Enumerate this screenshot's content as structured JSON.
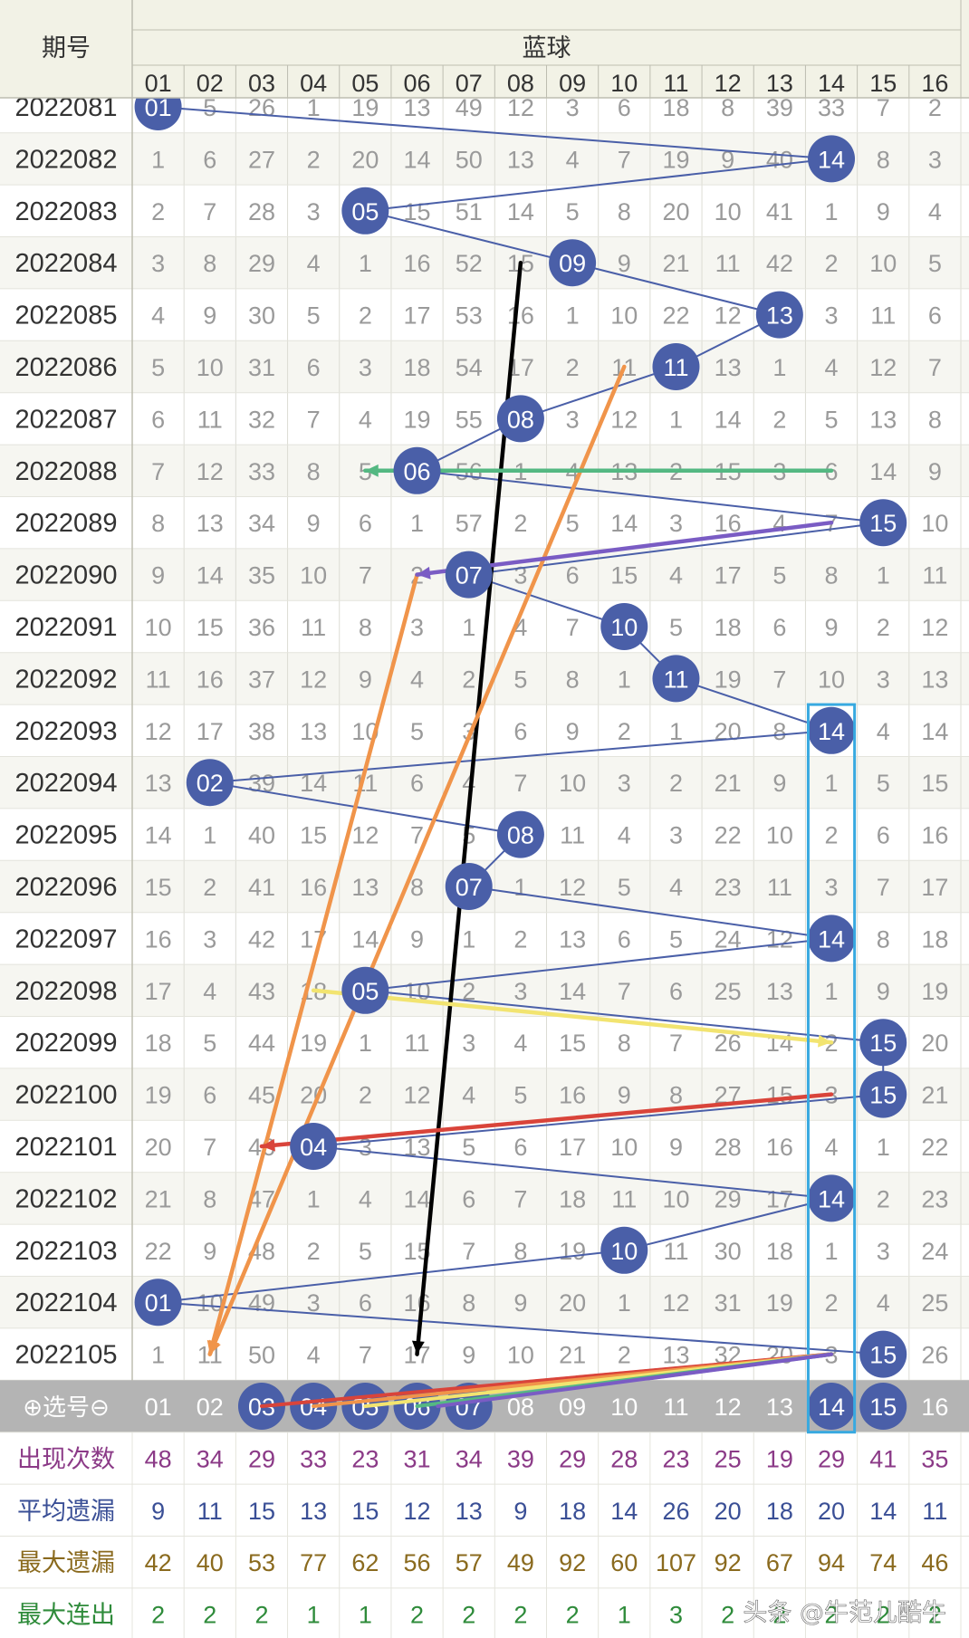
{
  "header": {
    "period_label": "期号",
    "blue_label": "蓝球",
    "columns": [
      "01",
      "02",
      "03",
      "04",
      "05",
      "06",
      "07",
      "08",
      "09",
      "10",
      "11",
      "12",
      "13",
      "14",
      "15",
      "16"
    ]
  },
  "chart_data": {
    "type": "table",
    "rows": [
      {
        "period": "2022081",
        "cells": [
          "01",
          "5",
          "26",
          "1",
          "19",
          "13",
          "49",
          "12",
          "3",
          "6",
          "18",
          "8",
          "39",
          "33",
          "7",
          "2"
        ],
        "hit": 1
      },
      {
        "period": "2022082",
        "cells": [
          "1",
          "6",
          "27",
          "2",
          "20",
          "14",
          "50",
          "13",
          "4",
          "7",
          "19",
          "9",
          "40",
          "14",
          "8",
          "3"
        ],
        "hit": 14
      },
      {
        "period": "2022083",
        "cells": [
          "2",
          "7",
          "28",
          "3",
          "05",
          "15",
          "51",
          "14",
          "5",
          "8",
          "20",
          "10",
          "41",
          "1",
          "9",
          "4"
        ],
        "hit": 5
      },
      {
        "period": "2022084",
        "cells": [
          "3",
          "8",
          "29",
          "4",
          "1",
          "16",
          "52",
          "15",
          "09",
          "9",
          "21",
          "11",
          "42",
          "2",
          "10",
          "5"
        ],
        "hit": 9
      },
      {
        "period": "2022085",
        "cells": [
          "4",
          "9",
          "30",
          "5",
          "2",
          "17",
          "53",
          "16",
          "1",
          "10",
          "22",
          "12",
          "13",
          "3",
          "11",
          "6"
        ],
        "hit": 13
      },
      {
        "period": "2022086",
        "cells": [
          "5",
          "10",
          "31",
          "6",
          "3",
          "18",
          "54",
          "17",
          "2",
          "11",
          "11",
          "13",
          "1",
          "4",
          "12",
          "7"
        ],
        "hit": 11
      },
      {
        "period": "2022087",
        "cells": [
          "6",
          "11",
          "32",
          "7",
          "4",
          "19",
          "55",
          "08",
          "3",
          "12",
          "1",
          "14",
          "2",
          "5",
          "13",
          "8"
        ],
        "hit": 8
      },
      {
        "period": "2022088",
        "cells": [
          "7",
          "12",
          "33",
          "8",
          "5",
          "06",
          "56",
          "1",
          "4",
          "13",
          "2",
          "15",
          "3",
          "6",
          "14",
          "9"
        ],
        "hit": 6
      },
      {
        "period": "2022089",
        "cells": [
          "8",
          "13",
          "34",
          "9",
          "6",
          "1",
          "57",
          "2",
          "5",
          "14",
          "3",
          "16",
          "4",
          "7",
          "15",
          "10"
        ],
        "hit": 15
      },
      {
        "period": "2022090",
        "cells": [
          "9",
          "14",
          "35",
          "10",
          "7",
          "2",
          "07",
          "3",
          "6",
          "15",
          "4",
          "17",
          "5",
          "8",
          "1",
          "11"
        ],
        "hit": 7
      },
      {
        "period": "2022091",
        "cells": [
          "10",
          "15",
          "36",
          "11",
          "8",
          "3",
          "1",
          "4",
          "7",
          "10",
          "5",
          "18",
          "6",
          "9",
          "2",
          "12"
        ],
        "hit": 10
      },
      {
        "period": "2022092",
        "cells": [
          "11",
          "16",
          "37",
          "12",
          "9",
          "4",
          "2",
          "5",
          "8",
          "1",
          "11",
          "19",
          "7",
          "10",
          "3",
          "13"
        ],
        "hit": 11
      },
      {
        "period": "2022093",
        "cells": [
          "12",
          "17",
          "38",
          "13",
          "10",
          "5",
          "3",
          "6",
          "9",
          "2",
          "1",
          "20",
          "8",
          "14",
          "4",
          "14"
        ],
        "hit": 14
      },
      {
        "period": "2022094",
        "cells": [
          "13",
          "02",
          "39",
          "14",
          "11",
          "6",
          "4",
          "7",
          "10",
          "3",
          "2",
          "21",
          "9",
          "1",
          "5",
          "15"
        ],
        "hit": 2
      },
      {
        "period": "2022095",
        "cells": [
          "14",
          "1",
          "40",
          "15",
          "12",
          "7",
          "5",
          "08",
          "11",
          "4",
          "3",
          "22",
          "10",
          "2",
          "6",
          "16"
        ],
        "hit": 8
      },
      {
        "period": "2022096",
        "cells": [
          "15",
          "2",
          "41",
          "16",
          "13",
          "8",
          "07",
          "1",
          "12",
          "5",
          "4",
          "23",
          "11",
          "3",
          "7",
          "17"
        ],
        "hit": 7
      },
      {
        "period": "2022097",
        "cells": [
          "16",
          "3",
          "42",
          "17",
          "14",
          "9",
          "1",
          "2",
          "13",
          "6",
          "5",
          "24",
          "12",
          "14",
          "8",
          "18"
        ],
        "hit": 14
      },
      {
        "period": "2022098",
        "cells": [
          "17",
          "4",
          "43",
          "18",
          "05",
          "10",
          "2",
          "3",
          "14",
          "7",
          "6",
          "25",
          "13",
          "1",
          "9",
          "19"
        ],
        "hit": 5
      },
      {
        "period": "2022099",
        "cells": [
          "18",
          "5",
          "44",
          "19",
          "1",
          "11",
          "3",
          "4",
          "15",
          "8",
          "7",
          "26",
          "14",
          "2",
          "15",
          "20"
        ],
        "hit": 15
      },
      {
        "period": "2022100",
        "cells": [
          "19",
          "6",
          "45",
          "20",
          "2",
          "12",
          "4",
          "5",
          "16",
          "9",
          "8",
          "27",
          "15",
          "3",
          "15",
          "21"
        ],
        "hit": 15
      },
      {
        "period": "2022101",
        "cells": [
          "20",
          "7",
          "46",
          "04",
          "3",
          "13",
          "5",
          "6",
          "17",
          "10",
          "9",
          "28",
          "16",
          "4",
          "1",
          "22"
        ],
        "hit": 4
      },
      {
        "period": "2022102",
        "cells": [
          "21",
          "8",
          "47",
          "1",
          "4",
          "14",
          "6",
          "7",
          "18",
          "11",
          "10",
          "29",
          "17",
          "14",
          "2",
          "23"
        ],
        "hit": 14
      },
      {
        "period": "2022103",
        "cells": [
          "22",
          "9",
          "48",
          "2",
          "5",
          "15",
          "7",
          "8",
          "19",
          "10",
          "11",
          "30",
          "18",
          "1",
          "3",
          "24"
        ],
        "hit": 10
      },
      {
        "period": "2022104",
        "cells": [
          "01",
          "10",
          "49",
          "3",
          "6",
          "16",
          "8",
          "9",
          "20",
          "1",
          "12",
          "31",
          "19",
          "2",
          "4",
          "25"
        ],
        "hit": 1
      },
      {
        "period": "2022105",
        "cells": [
          "1",
          "11",
          "50",
          "4",
          "7",
          "17",
          "9",
          "10",
          "21",
          "2",
          "13",
          "32",
          "20",
          "3",
          "15",
          "26"
        ],
        "hit": 15
      }
    ],
    "selected": [
      3,
      4,
      5,
      6,
      7,
      14,
      15
    ],
    "highlight_column": 14,
    "lines": [
      {
        "from": [
          3,
          8
        ],
        "to": [
          24,
          6
        ],
        "color": "#000000"
      },
      {
        "from": [
          5,
          10
        ],
        "to": [
          24,
          2
        ],
        "color": "#f0944a"
      },
      {
        "from": [
          9,
          6
        ],
        "to": [
          24,
          2
        ],
        "color": "#f0944a"
      },
      {
        "from": [
          7,
          14
        ],
        "to": [
          7,
          5
        ],
        "color": "#54b882"
      },
      {
        "from": [
          8,
          14
        ],
        "to": [
          9,
          6
        ],
        "color": "#7a5cc4"
      },
      {
        "from": [
          17,
          4
        ],
        "to": [
          18,
          14
        ],
        "color": "#f2e470"
      },
      {
        "from": [
          19,
          14
        ],
        "to": [
          20,
          3
        ],
        "color": "#d9443a"
      },
      {
        "from": [
          24,
          14
        ],
        "to": [
          25,
          3
        ],
        "color": "#d9443a"
      },
      {
        "from": [
          24,
          14
        ],
        "to": [
          25,
          4
        ],
        "color": "#f0944a"
      },
      {
        "from": [
          24,
          14
        ],
        "to": [
          25,
          5
        ],
        "color": "#f2e470"
      },
      {
        "from": [
          24,
          14
        ],
        "to": [
          25,
          6
        ],
        "color": "#54b882"
      },
      {
        "from": [
          24,
          14
        ],
        "to": [
          25,
          6.4
        ],
        "color": "#7a5cc4"
      }
    ]
  },
  "select_row": {
    "label": "⊕选号⊖",
    "values": [
      "01",
      "02",
      "03",
      "04",
      "05",
      "06",
      "07",
      "08",
      "09",
      "10",
      "11",
      "12",
      "13",
      "14",
      "15",
      "16"
    ]
  },
  "stats": [
    {
      "label": "出现次数",
      "values": [
        "48",
        "34",
        "29",
        "33",
        "23",
        "31",
        "34",
        "39",
        "29",
        "28",
        "23",
        "25",
        "19",
        "29",
        "41",
        "35"
      ],
      "color": "#8b3a87"
    },
    {
      "label": "平均遗漏",
      "values": [
        "9",
        "11",
        "15",
        "13",
        "15",
        "12",
        "13",
        "9",
        "18",
        "14",
        "26",
        "20",
        "18",
        "20",
        "14",
        "11"
      ],
      "color": "#3a4f96"
    },
    {
      "label": "最大遗漏",
      "values": [
        "42",
        "40",
        "53",
        "77",
        "62",
        "56",
        "57",
        "49",
        "92",
        "60",
        "107",
        "92",
        "67",
        "94",
        "74",
        "46"
      ],
      "color": "#8a6a1e"
    },
    {
      "label": "最大连出",
      "values": [
        "2",
        "2",
        "2",
        "1",
        "1",
        "2",
        "2",
        "2",
        "2",
        "1",
        "3",
        "2",
        "2",
        "2",
        "2",
        "2"
      ],
      "color": "#2e8b3a"
    }
  ],
  "watermark": "头条 @牛范儿酷牛",
  "colors": {
    "ball": "#4a5fa8",
    "line": "#4a5fa8",
    "header_bg": "#f2f2e6",
    "select_bg": "#b4b4b4",
    "highlight": "#38a9e0"
  }
}
